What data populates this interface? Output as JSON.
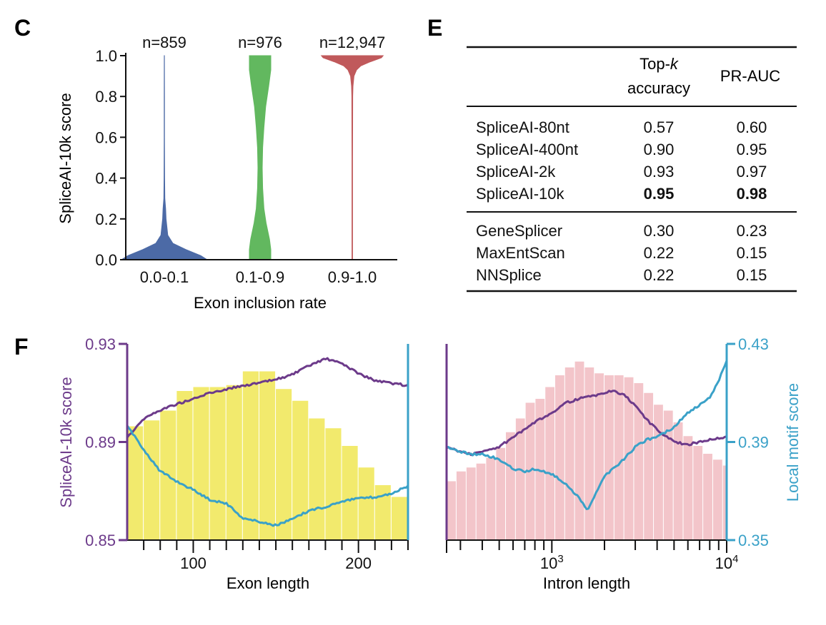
{
  "panels": {
    "c": "C",
    "e": "E",
    "f": "F"
  },
  "colors": {
    "blue": "#4c6aa6",
    "green": "#62b85f",
    "red": "#c0595b",
    "purple": "#6c3a8a",
    "cyan": "#3aa1c8",
    "yellow": "#f2ea6d",
    "pink": "#f3c5ca"
  },
  "table": {
    "col1_line1": "Top-",
    "col1_italic": "k",
    "col1_line2": "accuracy",
    "col2": "PR-AUC",
    "rows_a": [
      {
        "name": "SpliceAI-80nt",
        "topk": "0.57",
        "prauc": "0.60",
        "bold": false
      },
      {
        "name": "SpliceAI-400nt",
        "topk": "0.90",
        "prauc": "0.95",
        "bold": false
      },
      {
        "name": "SpliceAI-2k",
        "topk": "0.93",
        "prauc": "0.97",
        "bold": false
      },
      {
        "name": "SpliceAI-10k",
        "topk": "0.95",
        "prauc": "0.98",
        "bold": true
      }
    ],
    "rows_b": [
      {
        "name": "GeneSplicer",
        "topk": "0.30",
        "prauc": "0.23"
      },
      {
        "name": "MaxEntScan",
        "topk": "0.22",
        "prauc": "0.15"
      },
      {
        "name": "NNSplice",
        "topk": "0.22",
        "prauc": "0.15"
      }
    ]
  },
  "chart_data": [
    {
      "id": "C",
      "type": "violin",
      "categories": [
        "0.0-0.1",
        "0.1-0.9",
        "0.9-1.0"
      ],
      "counts": [
        "n=859",
        "n=976",
        "n=12,947"
      ],
      "xlabel": "Exon inclusion rate",
      "ylabel": "SpliceAI-10k score",
      "ylim": [
        0,
        1
      ],
      "yticks": [
        0,
        0.2,
        0.4,
        0.6,
        0.8,
        1.0
      ],
      "ytick_labels": [
        "0.0",
        "0.2",
        "0.4",
        "0.6",
        "0.8",
        "1.0"
      ],
      "violins": [
        {
          "color": "#4c6aa6",
          "profile": [
            [
              0.0,
              1.0
            ],
            [
              0.02,
              0.85
            ],
            [
              0.05,
              0.5
            ],
            [
              0.08,
              0.2
            ],
            [
              0.12,
              0.08
            ],
            [
              0.2,
              0.04
            ],
            [
              0.25,
              0.03
            ],
            [
              0.3,
              0.012
            ],
            [
              0.4,
              0.006
            ],
            [
              0.6,
              0.004
            ],
            [
              0.8,
              0.003
            ],
            [
              1.0,
              0.002
            ]
          ]
        },
        {
          "color": "#62b85f",
          "profile": [
            [
              0.0,
              0.25
            ],
            [
              0.05,
              0.25
            ],
            [
              0.1,
              0.22
            ],
            [
              0.18,
              0.14
            ],
            [
              0.25,
              0.09
            ],
            [
              0.35,
              0.06
            ],
            [
              0.45,
              0.05
            ],
            [
              0.55,
              0.06
            ],
            [
              0.65,
              0.09
            ],
            [
              0.75,
              0.13
            ],
            [
              0.85,
              0.2
            ],
            [
              0.93,
              0.25
            ],
            [
              1.0,
              0.25
            ]
          ]
        },
        {
          "color": "#c0595b",
          "profile": [
            [
              0.0,
              0.006
            ],
            [
              0.5,
              0.007
            ],
            [
              0.8,
              0.01
            ],
            [
              0.85,
              0.016
            ],
            [
              0.9,
              0.04
            ],
            [
              0.93,
              0.1
            ],
            [
              0.95,
              0.2
            ],
            [
              0.97,
              0.42
            ],
            [
              0.99,
              0.68
            ],
            [
              1.0,
              0.72
            ]
          ]
        }
      ]
    },
    {
      "id": "F-left",
      "type": "histogram+line",
      "xlabel": "Exon length",
      "ylabel_left": "SpliceAI-10k score",
      "x_scale": "linear",
      "xlim": [
        60,
        230
      ],
      "xticks": [
        100,
        200
      ],
      "xtick_labels": [
        "100",
        "200"
      ],
      "minor_xticks": [
        70,
        80,
        90,
        110,
        120,
        130,
        140,
        150,
        160,
        170,
        180,
        190,
        210,
        220,
        230
      ],
      "ylim_left": [
        0.85,
        0.93
      ],
      "yticks_left": [
        "0.85",
        "0.89",
        "0.93"
      ],
      "ylim_right": [
        0.35,
        0.43
      ],
      "bar_color": "#f2ea6d",
      "bar_edges": [
        60,
        70,
        80,
        90,
        100,
        110,
        120,
        130,
        140,
        150,
        160,
        170,
        180,
        190,
        200,
        210,
        220,
        230
      ],
      "bar_heights": [
        0.58,
        0.61,
        0.66,
        0.76,
        0.78,
        0.78,
        0.79,
        0.86,
        0.86,
        0.77,
        0.71,
        0.62,
        0.57,
        0.48,
        0.37,
        0.28,
        0.22,
        0.19
      ],
      "series": [
        {
          "name": "",
          "axis": "left",
          "color": "#6c3a8a",
          "x": [
            60,
            70,
            80,
            90,
            100,
            110,
            120,
            130,
            140,
            150,
            160,
            170,
            180,
            190,
            200,
            210,
            220,
            230
          ],
          "y": [
            0.892,
            0.8995,
            0.903,
            0.9055,
            0.9075,
            0.91,
            0.9115,
            0.913,
            0.914,
            0.9155,
            0.9175,
            0.921,
            0.924,
            0.922,
            0.918,
            0.915,
            0.914,
            0.913
          ]
        },
        {
          "name": "",
          "axis": "right",
          "color": "#3aa1c8",
          "x": [
            60,
            70,
            80,
            90,
            100,
            110,
            120,
            130,
            140,
            150,
            160,
            170,
            180,
            190,
            200,
            210,
            220,
            230
          ],
          "y": [
            0.3965,
            0.387,
            0.378,
            0.374,
            0.3705,
            0.3665,
            0.365,
            0.359,
            0.3575,
            0.356,
            0.3585,
            0.362,
            0.3635,
            0.366,
            0.367,
            0.3675,
            0.369,
            0.372
          ]
        }
      ]
    },
    {
      "id": "F-right",
      "type": "histogram+line",
      "xlabel": "Intron length",
      "ylabel_right": "Local motif score",
      "x_scale": "log",
      "xlim": [
        250,
        10000
      ],
      "xtick_labels": [
        {
          "base": "10",
          "exp": "3",
          "x": 1000
        },
        {
          "base": "10",
          "exp": "4",
          "x": 10000
        }
      ],
      "minor_xticks": [
        300,
        400,
        500,
        600,
        700,
        800,
        900,
        2000,
        3000,
        4000,
        5000,
        6000,
        7000,
        8000,
        9000
      ],
      "ylim_left": [
        0.85,
        0.93
      ],
      "ylim_right": [
        0.35,
        0.43
      ],
      "yticks_right": [
        "0.35",
        "0.39",
        "0.43"
      ],
      "bar_color": "#f3c5ca",
      "bar_edges": [
        250,
        285,
        325,
        370,
        421,
        480,
        546,
        622,
        708,
        806,
        918,
        1045,
        1190,
        1355,
        1543,
        1757,
        2000,
        2278,
        2594,
        2954,
        3364,
        3831,
        4363,
        4969,
        5659,
        6445,
        7340,
        8359,
        9520,
        10000
      ],
      "bar_heights": [
        0.3,
        0.35,
        0.37,
        0.39,
        0.42,
        0.47,
        0.55,
        0.62,
        0.7,
        0.72,
        0.78,
        0.84,
        0.88,
        0.91,
        0.88,
        0.85,
        0.84,
        0.84,
        0.83,
        0.8,
        0.75,
        0.69,
        0.66,
        0.6,
        0.53,
        0.48,
        0.44,
        0.41,
        0.38
      ],
      "series": [
        {
          "name": "",
          "axis": "left",
          "color": "#6c3a8a",
          "x": [
            250,
            300,
            350,
            400,
            500,
            600,
            700,
            800,
            1000,
            1200,
            1500,
            1800,
            2200,
            2600,
            3000,
            3500,
            4000,
            5000,
            6000,
            7000,
            8000,
            10000
          ],
          "y": [
            0.888,
            0.886,
            0.885,
            0.886,
            0.888,
            0.892,
            0.895,
            0.898,
            0.902,
            0.906,
            0.908,
            0.909,
            0.911,
            0.909,
            0.905,
            0.899,
            0.895,
            0.89,
            0.889,
            0.89,
            0.891,
            0.892
          ]
        },
        {
          "name": "",
          "axis": "right",
          "color": "#3aa1c8",
          "x": [
            250,
            300,
            350,
            400,
            500,
            600,
            700,
            800,
            1000,
            1200,
            1400,
            1600,
            1800,
            2000,
            2500,
            3000,
            3500,
            4000,
            5000,
            6000,
            7000,
            8000,
            9000,
            10000
          ],
          "y": [
            0.388,
            0.386,
            0.385,
            0.385,
            0.383,
            0.379,
            0.378,
            0.379,
            0.377,
            0.373,
            0.368,
            0.362,
            0.37,
            0.376,
            0.382,
            0.388,
            0.391,
            0.392,
            0.396,
            0.402,
            0.405,
            0.408,
            0.415,
            0.423
          ]
        }
      ]
    }
  ]
}
